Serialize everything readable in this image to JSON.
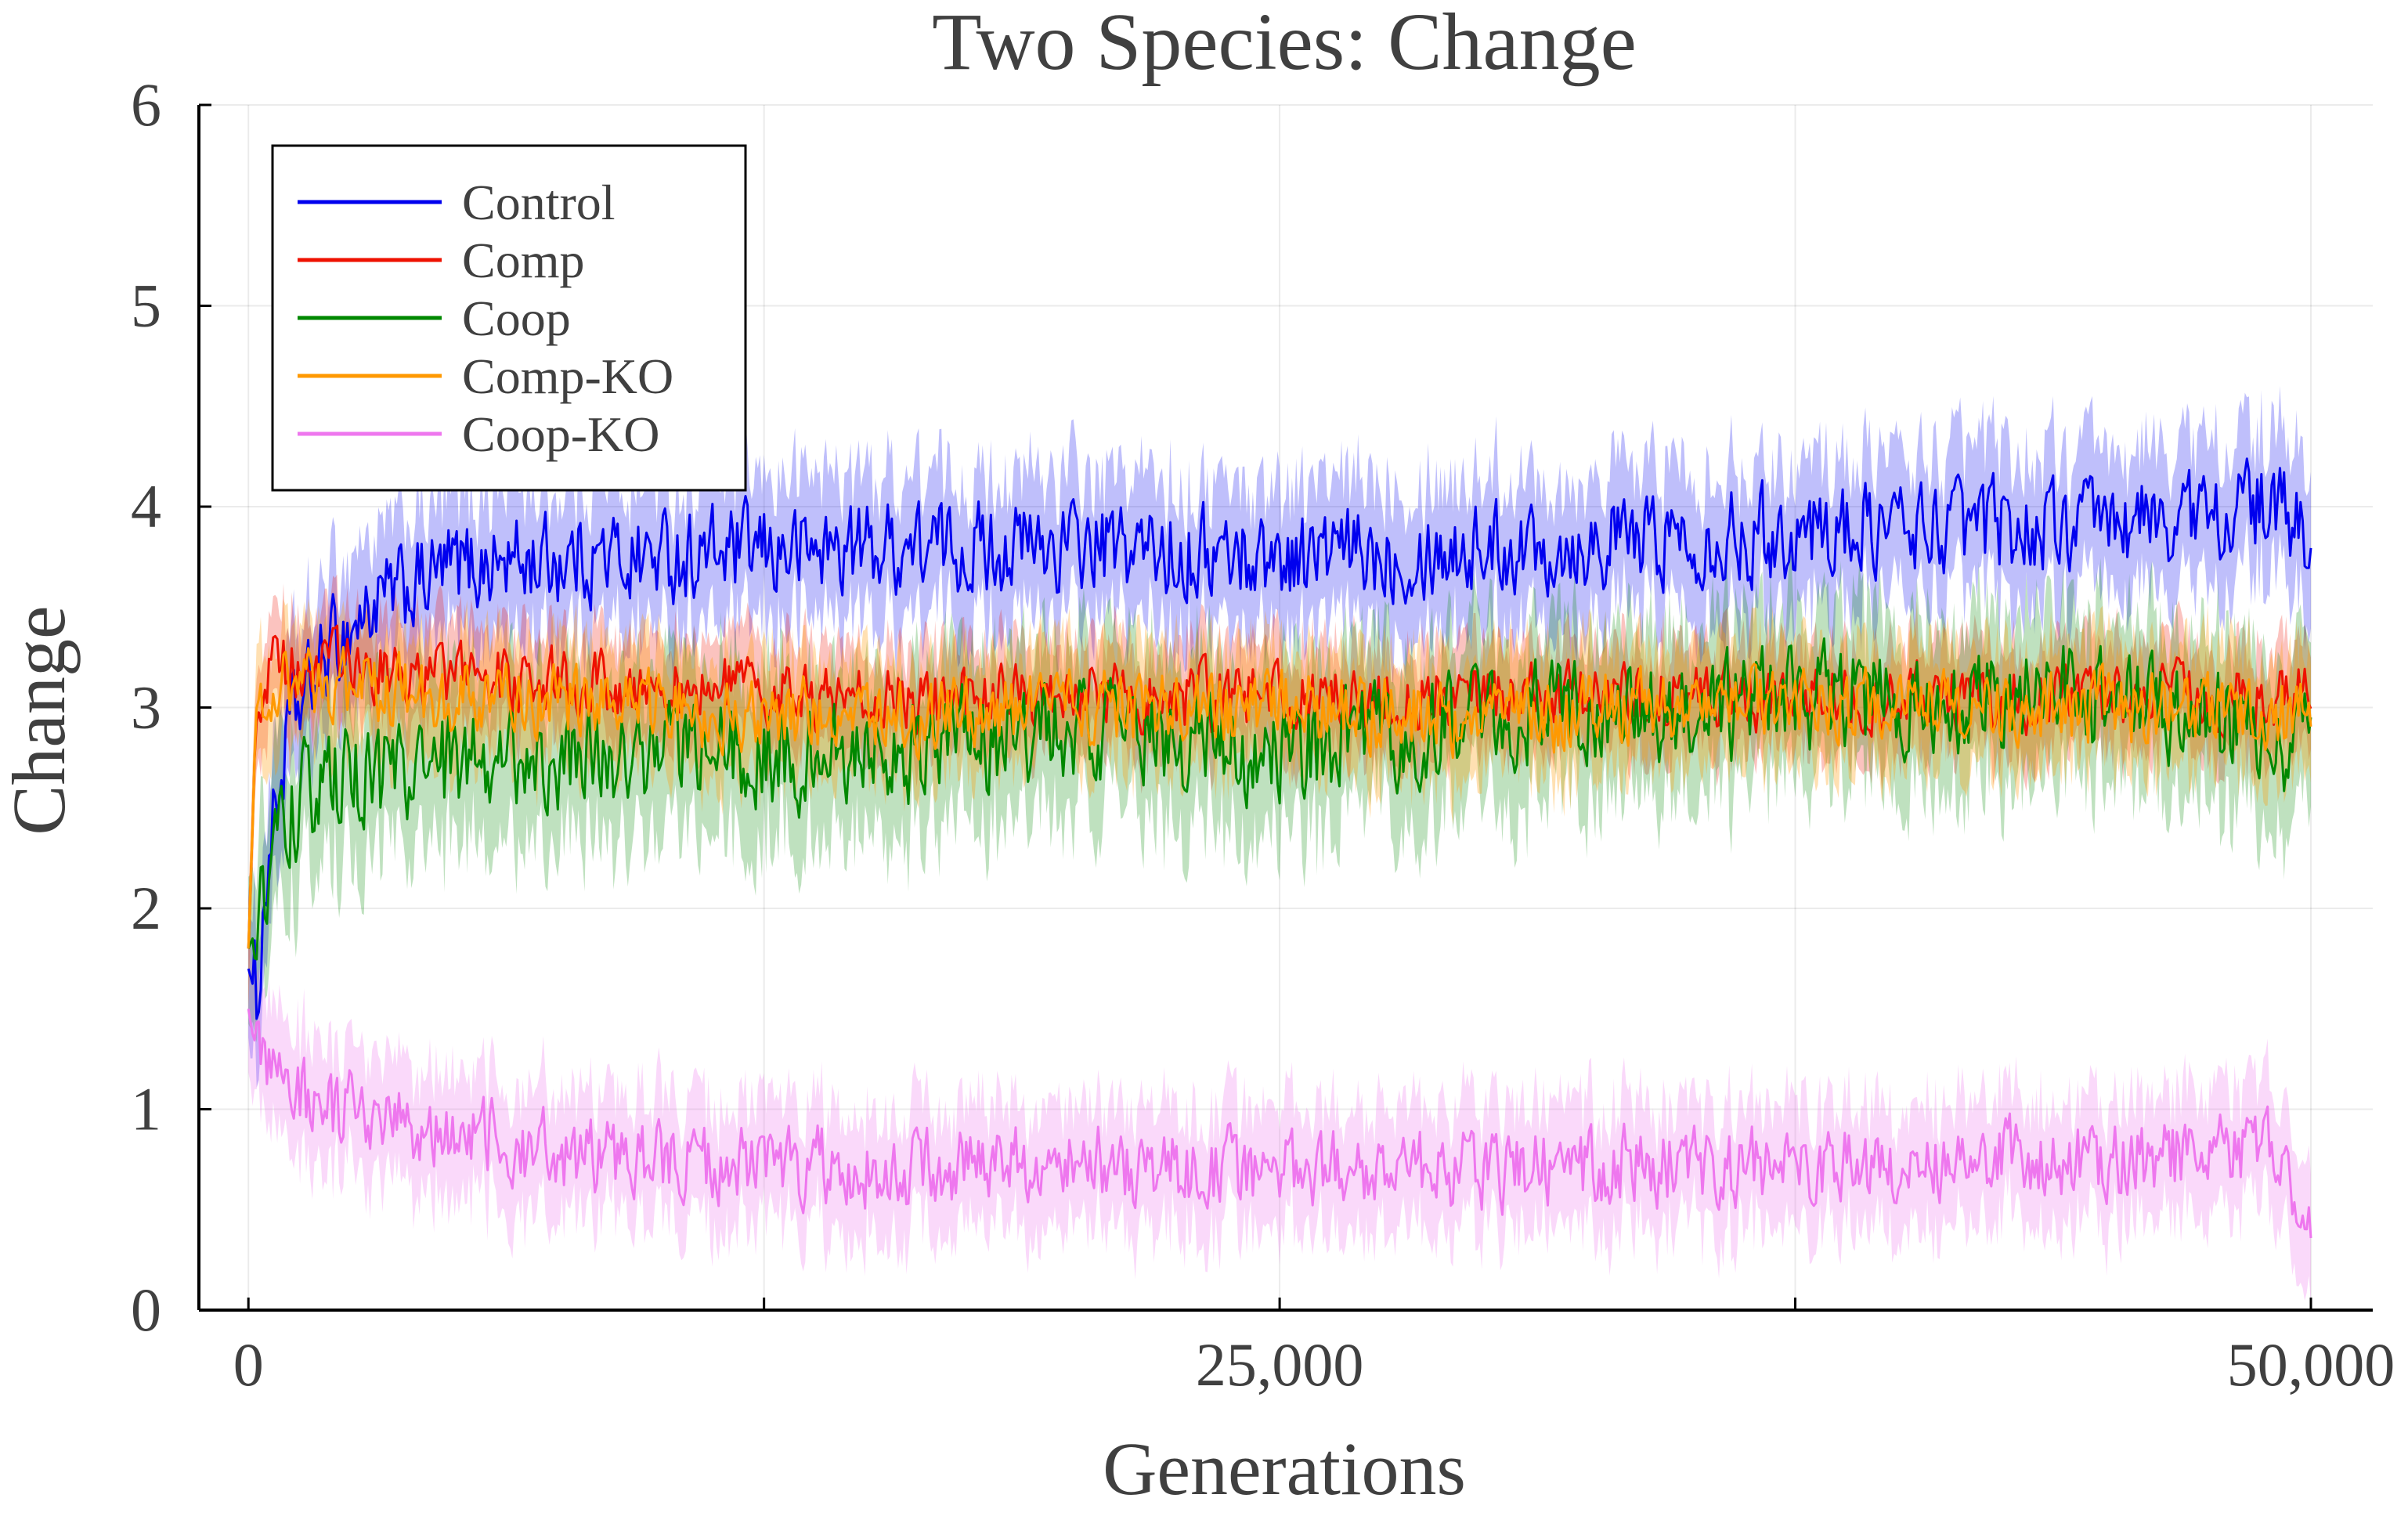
{
  "chart_data": {
    "type": "line",
    "title": "Two Species: Change",
    "xlabel": "Generations",
    "ylabel": "Change",
    "xlim": [
      -1200,
      51500
    ],
    "ylim": [
      0,
      6
    ],
    "x_range": [
      0,
      50000
    ],
    "x_tick_values": [
      0,
      12500,
      25000,
      37500,
      50000
    ],
    "x_tick_labels": [
      "0",
      "",
      "25,000",
      "",
      "50,000"
    ],
    "y_ticks": [
      0,
      1,
      2,
      3,
      4,
      5,
      6
    ],
    "y_tick_labels": [
      "0",
      "1",
      "2",
      "3",
      "4",
      "5",
      "6"
    ],
    "grid": true,
    "legend_position": "top-left",
    "series": [
      {
        "name": "Control",
        "color": "#0000ee",
        "band_opacity": 0.25,
        "band_halfwidth": 0.35,
        "anchors": [
          [
            0,
            1.7
          ],
          [
            200,
            1.55
          ],
          [
            500,
            2.3
          ],
          [
            1000,
            2.9
          ],
          [
            2000,
            3.3
          ],
          [
            3000,
            3.5
          ],
          [
            5000,
            3.7
          ],
          [
            8000,
            3.75
          ],
          [
            10000,
            3.75
          ],
          [
            15000,
            3.8
          ],
          [
            20000,
            3.8
          ],
          [
            25000,
            3.75
          ],
          [
            30000,
            3.8
          ],
          [
            35000,
            3.85
          ],
          [
            40000,
            3.9
          ],
          [
            45000,
            3.9
          ],
          [
            49000,
            4.0
          ],
          [
            50000,
            3.85
          ]
        ]
      },
      {
        "name": "Comp",
        "color": "#ee1100",
        "band_opacity": 0.25,
        "band_halfwidth": 0.25,
        "anchors": [
          [
            0,
            1.8
          ],
          [
            200,
            3.0
          ],
          [
            500,
            3.2
          ],
          [
            2000,
            3.2
          ],
          [
            5000,
            3.15
          ],
          [
            10000,
            3.1
          ],
          [
            15000,
            3.05
          ],
          [
            20000,
            3.05
          ],
          [
            25000,
            3.05
          ],
          [
            30000,
            3.05
          ],
          [
            35000,
            3.05
          ],
          [
            40000,
            3.05
          ],
          [
            45000,
            3.05
          ],
          [
            50000,
            3.05
          ]
        ]
      },
      {
        "name": "Coop",
        "color": "#008800",
        "band_opacity": 0.25,
        "band_halfwidth": 0.4,
        "anchors": [
          [
            0,
            1.8
          ],
          [
            200,
            1.9
          ],
          [
            500,
            2.2
          ],
          [
            1000,
            2.5
          ],
          [
            2000,
            2.6
          ],
          [
            5000,
            2.7
          ],
          [
            10000,
            2.8
          ],
          [
            15000,
            2.75
          ],
          [
            20000,
            2.9
          ],
          [
            25000,
            2.75
          ],
          [
            30000,
            2.95
          ],
          [
            35000,
            3.0
          ],
          [
            40000,
            3.05
          ],
          [
            45000,
            3.05
          ],
          [
            50000,
            2.8
          ]
        ]
      },
      {
        "name": "Comp-KO",
        "color": "#ff9900",
        "band_opacity": 0.3,
        "band_halfwidth": 0.28,
        "anchors": [
          [
            0,
            1.8
          ],
          [
            200,
            3.0
          ],
          [
            500,
            3.1
          ],
          [
            2000,
            3.1
          ],
          [
            5000,
            3.05
          ],
          [
            10000,
            3.0
          ],
          [
            15000,
            2.95
          ],
          [
            20000,
            3.0
          ],
          [
            25000,
            3.0
          ],
          [
            30000,
            2.95
          ],
          [
            35000,
            3.0
          ],
          [
            40000,
            3.0
          ],
          [
            45000,
            3.0
          ],
          [
            50000,
            2.95
          ]
        ]
      },
      {
        "name": "Coop-KO",
        "color": "#ee77ee",
        "band_opacity": 0.28,
        "band_halfwidth": 0.3,
        "anchors": [
          [
            0,
            1.5
          ],
          [
            200,
            1.25
          ],
          [
            500,
            1.15
          ],
          [
            1000,
            1.1
          ],
          [
            2000,
            1.0
          ],
          [
            5000,
            0.9
          ],
          [
            8000,
            0.75
          ],
          [
            10000,
            0.75
          ],
          [
            15000,
            0.7
          ],
          [
            20000,
            0.72
          ],
          [
            25000,
            0.7
          ],
          [
            30000,
            0.7
          ],
          [
            35000,
            0.72
          ],
          [
            40000,
            0.75
          ],
          [
            45000,
            0.75
          ],
          [
            49000,
            0.8
          ],
          [
            50000,
            0.55
          ]
        ]
      }
    ]
  }
}
